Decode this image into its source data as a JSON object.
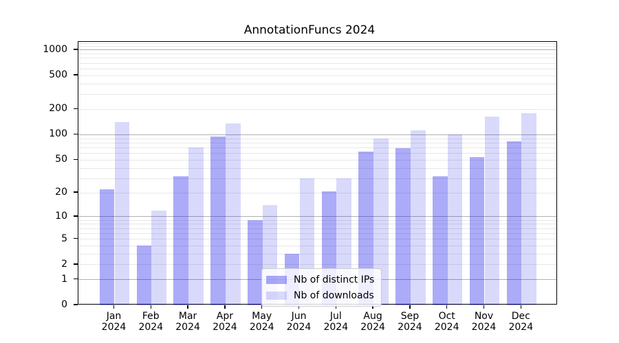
{
  "chart_data": {
    "type": "bar",
    "title": "AnnotationFuncs 2024",
    "categories": [
      "Jan",
      "Feb",
      "Mar",
      "Apr",
      "May",
      "Jun",
      "Jul",
      "Aug",
      "Sep",
      "Oct",
      "Nov",
      "Dec"
    ],
    "year_label": "2024",
    "series": [
      {
        "name": "Nb of distinct IPs",
        "color": "rgba(0,0,230,0.33)",
        "values": [
          22,
          4,
          32,
          96,
          9,
          3,
          21,
          63,
          69,
          32,
          54,
          84
        ]
      },
      {
        "name": "Nb of downloads",
        "color": "rgba(0,0,230,0.15)",
        "values": [
          140,
          12,
          71,
          135,
          14,
          30,
          30,
          90,
          113,
          100,
          165,
          180
        ]
      }
    ],
    "yscale": "log1p",
    "yticks": [
      0,
      1,
      2,
      5,
      10,
      20,
      50,
      100,
      200,
      500,
      1000
    ],
    "ylim": [
      0,
      1340
    ],
    "grid": "horizontal-only",
    "legend_position": "lower-center",
    "colors": {
      "major_grid": "#b0b0b0",
      "minor_grid": "#e8e8e8",
      "axis": "#000000"
    }
  }
}
